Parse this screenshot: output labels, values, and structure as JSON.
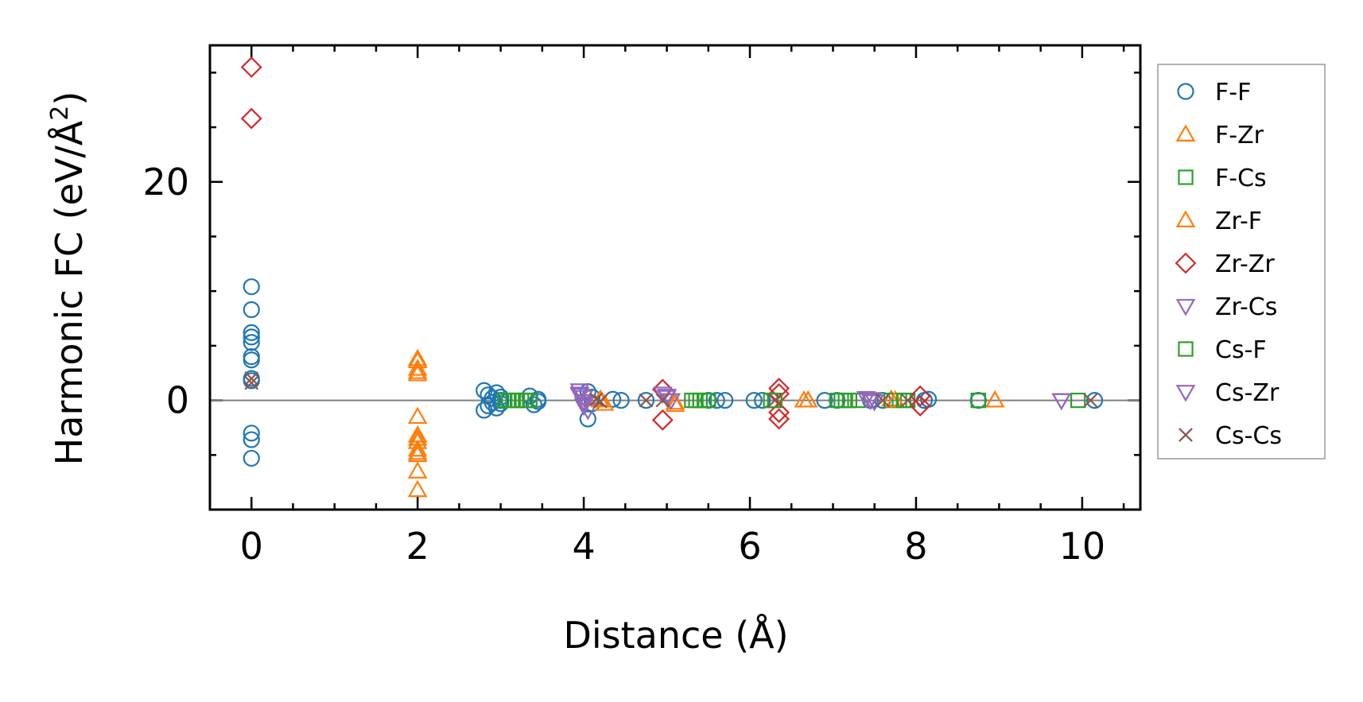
{
  "chart_data": {
    "type": "scatter",
    "xlabel": "Distance (Å)",
    "ylabel_main": "Harmonic FC (eV/Å",
    "ylabel_sup": "2",
    "ylabel_close": ")",
    "xlim": [
      -0.5,
      10.7
    ],
    "ylim": [
      -10,
      32.5
    ],
    "xticks": [
      0,
      2,
      4,
      6,
      8,
      10
    ],
    "xtick_labels": [
      "0",
      "2",
      "4",
      "6",
      "8",
      "10"
    ],
    "yticks": [
      0,
      20
    ],
    "ytick_labels": [
      "0",
      "20"
    ],
    "x_minor_step": 0.5,
    "y_minor_step": 5,
    "zero_line": true,
    "legend_position": "outside-right",
    "series": [
      {
        "name": "F-F",
        "marker": "circle",
        "color": "#1f77b4",
        "points": [
          [
            0,
            10.4
          ],
          [
            0,
            8.3
          ],
          [
            0,
            6.2
          ],
          [
            0,
            5.8
          ],
          [
            0,
            5.3
          ],
          [
            0,
            4.0
          ],
          [
            0,
            3.7
          ],
          [
            0,
            2.0
          ],
          [
            0,
            1.8
          ],
          [
            0,
            -3.0
          ],
          [
            0,
            -3.6
          ],
          [
            0,
            -5.3
          ],
          [
            2.8,
            0.9
          ],
          [
            2.8,
            -0.9
          ],
          [
            2.85,
            0.5
          ],
          [
            2.85,
            -0.5
          ],
          [
            2.9,
            0.2
          ],
          [
            2.9,
            -0.2
          ],
          [
            2.95,
            0.7
          ],
          [
            2.95,
            -0.7
          ],
          [
            3.0,
            0.3
          ],
          [
            3.0,
            -0.3
          ],
          [
            3.0,
            0.0
          ],
          [
            3.35,
            0.4
          ],
          [
            3.4,
            -0.4
          ],
          [
            3.45,
            0.1
          ],
          [
            3.45,
            -0.1
          ],
          [
            4.05,
            0.8
          ],
          [
            4.05,
            -1.7
          ],
          [
            4.1,
            0.3
          ],
          [
            4.1,
            -0.3
          ],
          [
            4.35,
            0.1
          ],
          [
            4.45,
            0.0
          ],
          [
            4.75,
            0.0
          ],
          [
            5.5,
            0.0
          ],
          [
            5.6,
            0.0
          ],
          [
            5.7,
            0.0
          ],
          [
            6.05,
            0.0
          ],
          [
            6.15,
            0.0
          ],
          [
            6.9,
            0.0
          ],
          [
            7.05,
            0.0
          ],
          [
            7.45,
            0.0
          ],
          [
            7.6,
            0.0
          ],
          [
            8.1,
            0.0
          ],
          [
            8.15,
            0.1
          ],
          [
            8.75,
            0.0
          ],
          [
            10.15,
            0.0
          ]
        ]
      },
      {
        "name": "F-Zr",
        "marker": "triangle-up",
        "color": "#ff7f0e",
        "points": [
          [
            2.0,
            3.8
          ],
          [
            2.0,
            2.9
          ],
          [
            2.0,
            2.4
          ],
          [
            2.0,
            -1.5
          ],
          [
            2.0,
            -3.2
          ],
          [
            2.0,
            -3.8
          ],
          [
            2.0,
            -4.5
          ],
          [
            2.0,
            -5.0
          ],
          [
            2.0,
            -6.5
          ],
          [
            2.0,
            -8.2
          ],
          [
            4.2,
            0.1
          ],
          [
            4.25,
            -0.3
          ],
          [
            5.1,
            -0.4
          ],
          [
            6.65,
            0.0
          ],
          [
            6.7,
            0.0
          ],
          [
            7.7,
            0.1
          ],
          [
            8.95,
            0.0
          ]
        ]
      },
      {
        "name": "F-Cs",
        "marker": "square",
        "color": "#2ca02c",
        "points": [
          [
            3.05,
            0.0
          ],
          [
            3.1,
            0.0
          ],
          [
            3.15,
            0.0
          ],
          [
            3.2,
            0.0
          ],
          [
            3.25,
            0.0
          ],
          [
            3.3,
            0.0
          ],
          [
            3.35,
            0.0
          ],
          [
            5.3,
            0.0
          ],
          [
            5.35,
            0.0
          ],
          [
            5.4,
            0.0
          ],
          [
            5.45,
            0.0
          ],
          [
            5.5,
            0.0
          ],
          [
            6.25,
            0.0
          ],
          [
            6.3,
            0.0
          ],
          [
            7.05,
            0.0
          ],
          [
            7.1,
            0.0
          ],
          [
            7.2,
            0.0
          ],
          [
            7.3,
            0.0
          ],
          [
            7.7,
            0.0
          ],
          [
            7.8,
            0.0
          ],
          [
            7.9,
            0.0
          ],
          [
            8.75,
            0.0
          ],
          [
            9.95,
            0.0
          ]
        ]
      },
      {
        "name": "Zr-F",
        "marker": "triangle-up",
        "color": "#ff7f0e",
        "points": [
          [
            2.0,
            3.6
          ],
          [
            2.0,
            2.6
          ],
          [
            2.0,
            -3.5
          ],
          [
            2.0,
            -4.8
          ],
          [
            4.2,
            0.0
          ],
          [
            5.1,
            -0.2
          ],
          [
            6.7,
            0.0
          ],
          [
            7.75,
            0.0
          ],
          [
            8.95,
            0.0
          ]
        ]
      },
      {
        "name": "Zr-Zr",
        "marker": "diamond",
        "color": "#d62728",
        "points": [
          [
            0,
            30.5
          ],
          [
            0,
            25.8
          ],
          [
            4.95,
            1.0
          ],
          [
            4.95,
            -1.8
          ],
          [
            6.35,
            1.1
          ],
          [
            6.35,
            0.6
          ],
          [
            6.35,
            -1.1
          ],
          [
            6.35,
            -1.7
          ],
          [
            8.05,
            0.4
          ],
          [
            8.05,
            -0.5
          ]
        ]
      },
      {
        "name": "Zr-Cs",
        "marker": "triangle-down",
        "color": "#9467bd",
        "points": [
          [
            3.95,
            0.9
          ],
          [
            3.95,
            0.6
          ],
          [
            4.0,
            0.3
          ],
          [
            4.0,
            -0.1
          ],
          [
            4.0,
            -0.5
          ],
          [
            4.05,
            -0.9
          ],
          [
            4.95,
            0.6
          ],
          [
            5.0,
            0.3
          ],
          [
            5.05,
            0.0
          ],
          [
            7.4,
            0.2
          ],
          [
            7.45,
            0.0
          ],
          [
            7.5,
            -0.1
          ],
          [
            9.75,
            0.0
          ]
        ]
      },
      {
        "name": "Cs-F",
        "marker": "square",
        "color": "#2ca02c",
        "points": [
          [
            3.15,
            0.0
          ],
          [
            3.3,
            0.0
          ],
          [
            5.4,
            0.0
          ],
          [
            6.3,
            0.0
          ],
          [
            7.15,
            0.0
          ],
          [
            7.85,
            0.0
          ],
          [
            8.75,
            0.0
          ]
        ]
      },
      {
        "name": "Cs-Zr",
        "marker": "triangle-down",
        "color": "#9467bd",
        "points": [
          [
            3.95,
            0.5
          ],
          [
            4.0,
            -0.3
          ],
          [
            5.0,
            0.4
          ],
          [
            7.45,
            0.1
          ],
          [
            9.75,
            0.0
          ]
        ]
      },
      {
        "name": "Cs-Cs",
        "marker": "x",
        "color": "#8c564b",
        "points": [
          [
            0,
            2.0
          ],
          [
            0,
            1.6
          ],
          [
            4.15,
            0.1
          ],
          [
            4.2,
            -0.1
          ],
          [
            4.75,
            0.0
          ],
          [
            4.95,
            0.0
          ],
          [
            6.3,
            0.0
          ],
          [
            7.6,
            0.0
          ],
          [
            7.9,
            0.0
          ],
          [
            10.1,
            0.0
          ]
        ]
      }
    ]
  }
}
